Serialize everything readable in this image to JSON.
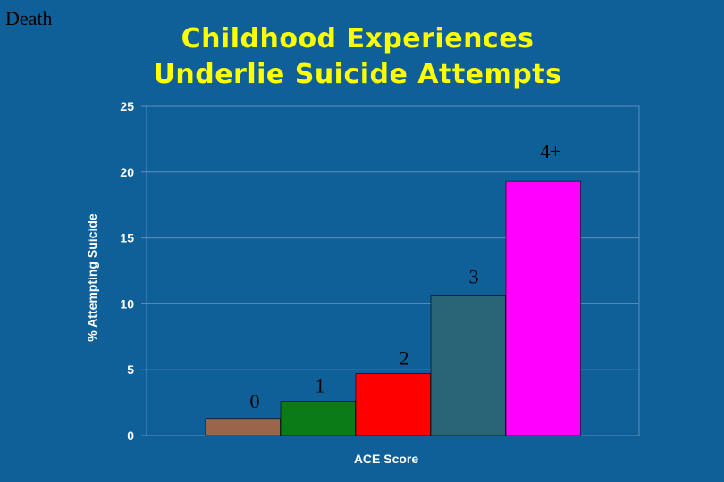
{
  "corner_label": "Death",
  "title_line1": "Childhood Experiences",
  "title_line2": "Underlie Suicide Attempts",
  "colors": {
    "background": "#0f6098",
    "title": "#ffff00",
    "grid": "#5f8fbf"
  },
  "chart_data": {
    "type": "bar",
    "title": "Childhood Experiences Underlie Suicide Attempts",
    "xlabel": "ACE Score",
    "ylabel": "% Attempting Suicide",
    "ylim": [
      0,
      25
    ],
    "yticks": [
      "0",
      "5",
      "10",
      "15",
      "20",
      "25"
    ],
    "grid": true,
    "categories": [
      "0",
      "1",
      "2",
      "3",
      "4+"
    ],
    "values": [
      1.3,
      2.6,
      4.7,
      10.6,
      19.3
    ],
    "bar_colors": [
      "#99664a",
      "#0a7b15",
      "#ff0000",
      "#2a6577",
      "#ff00ff"
    ]
  }
}
